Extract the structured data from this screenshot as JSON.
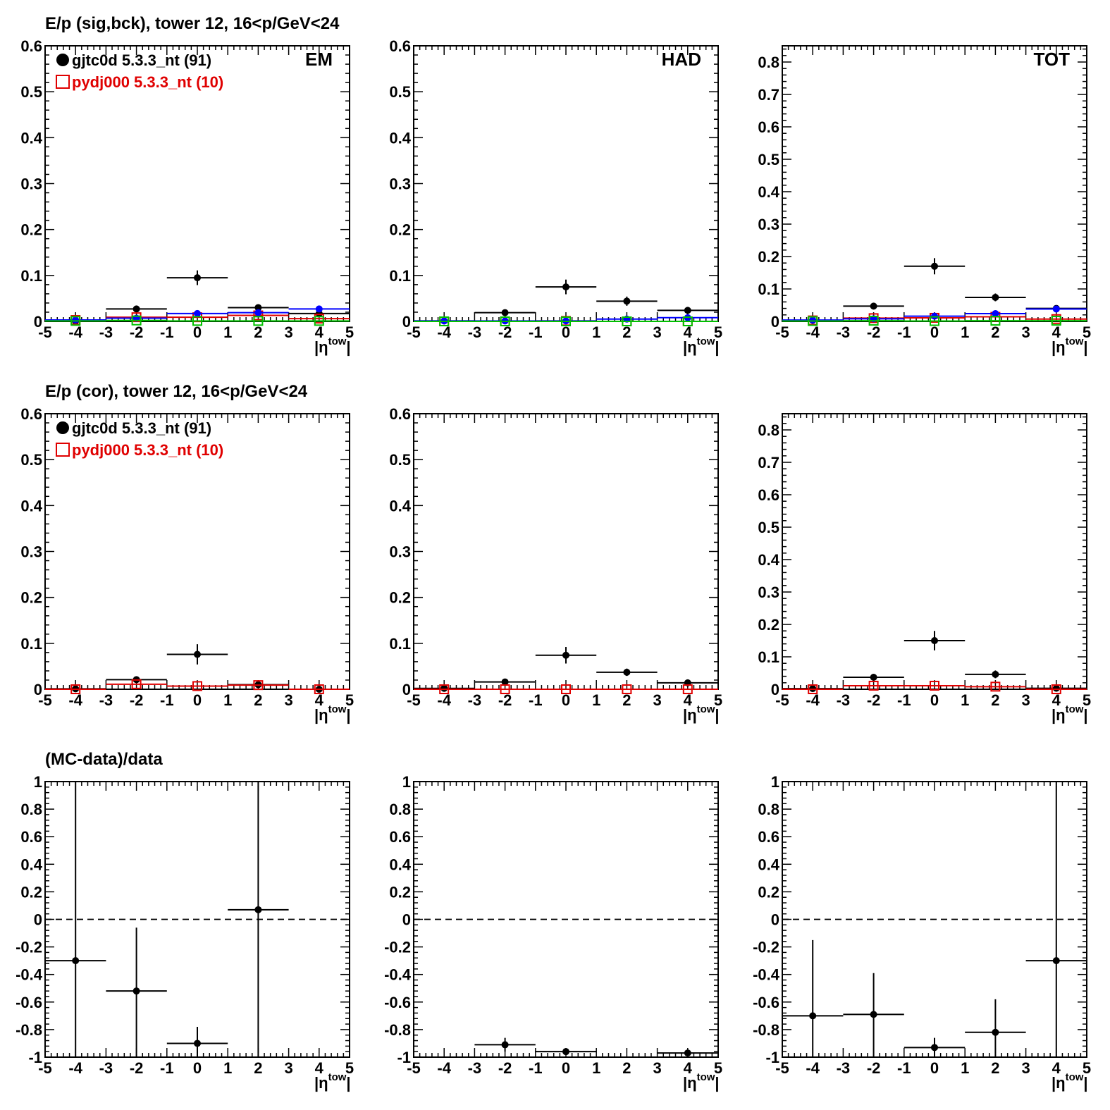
{
  "titles": {
    "row0": "E/p (sig,bck), tower 12, 16<p/GeV<24",
    "row1": "E/p (cor), tower 12, 16<p/GeV<24",
    "row2": "(MC-data)/data"
  },
  "legend": {
    "data_label": "gjtc0d 5.3.3_nt (91)",
    "mc_label": "pydj000 5.3.3_nt (10)"
  },
  "xaxis": {
    "label_main": "|η",
    "label_sup": "tow",
    "label_end": "|"
  },
  "colors": {
    "data": "#000000",
    "mc": "#e00000",
    "blue": "#0000ff",
    "green": "#00c000"
  },
  "chart_data": [
    {
      "id": "r0c0",
      "type": "line",
      "panel_label": "EM",
      "legend": true,
      "xlim": [
        -5,
        5
      ],
      "ylim": [
        0,
        0.6
      ],
      "yticks": [
        0,
        0.1,
        0.2,
        0.3,
        0.4,
        0.5,
        0.6
      ],
      "series": [
        {
          "name": "gjtc0d 5.3.3_nt (91)",
          "role": "data",
          "color": "#000000",
          "marker": "dot",
          "x": [
            -4,
            -2,
            0,
            2,
            4
          ],
          "y": [
            0.001,
            0.027,
            0.095,
            0.03,
            0.017
          ],
          "err": [
            0.0,
            0.0,
            0.016,
            0.0,
            0.0
          ]
        },
        {
          "name": "pydj000 5.3.3_nt (10)",
          "role": "mc",
          "color": "#e00000",
          "marker": "box",
          "x": [
            -4,
            -2,
            0,
            2,
            4
          ],
          "y": [
            0.003,
            0.009,
            0.009,
            0.013,
            0.006
          ]
        },
        {
          "role": "blue",
          "color": "#0000ff",
          "marker": "dot",
          "x": [
            -4,
            -2,
            0,
            2,
            4
          ],
          "y": [
            0.003,
            0.007,
            0.017,
            0.019,
            0.027
          ]
        },
        {
          "role": "green",
          "color": "#00c000",
          "marker": "box",
          "x": [
            -4,
            -2,
            0,
            2,
            4
          ],
          "y": [
            0.001,
            0.002,
            0.001,
            0.001,
            0.001
          ]
        }
      ]
    },
    {
      "id": "r0c1",
      "type": "line",
      "panel_label": "HAD",
      "legend": false,
      "xlim": [
        -5,
        5
      ],
      "ylim": [
        0,
        0.6
      ],
      "yticks": [
        0,
        0.1,
        0.2,
        0.3,
        0.4,
        0.5,
        0.6
      ],
      "series": [
        {
          "role": "data",
          "color": "#000000",
          "marker": "dot",
          "x": [
            -4,
            -2,
            0,
            2,
            4
          ],
          "y": [
            0.001,
            0.019,
            0.075,
            0.044,
            0.024
          ],
          "err": [
            0.0,
            0.0,
            0.016,
            0.01,
            0.0
          ]
        },
        {
          "role": "mc",
          "color": "#e00000",
          "marker": "box",
          "x": [
            -4,
            -2,
            0,
            2,
            4
          ],
          "y": [
            0.0,
            0.0,
            0.001,
            0.0,
            0.0
          ]
        },
        {
          "role": "blue",
          "color": "#0000ff",
          "marker": "dot",
          "x": [
            -4,
            -2,
            0,
            2,
            4
          ],
          "y": [
            0.001,
            0.001,
            0.001,
            0.005,
            0.008
          ]
        },
        {
          "role": "green",
          "color": "#00c000",
          "marker": "box",
          "x": [
            -4,
            -2,
            0,
            2,
            4
          ],
          "y": [
            0.0,
            0.0,
            0.0,
            0.0,
            0.0
          ]
        }
      ]
    },
    {
      "id": "r0c2",
      "type": "line",
      "panel_label": "TOT",
      "legend": false,
      "xlim": [
        -5,
        5
      ],
      "ylim": [
        0,
        0.85
      ],
      "yticks": [
        0,
        0.1,
        0.2,
        0.3,
        0.4,
        0.5,
        0.6,
        0.7,
        0.8
      ],
      "series": [
        {
          "role": "data",
          "color": "#000000",
          "marker": "dot",
          "x": [
            -4,
            -2,
            0,
            2,
            4
          ],
          "y": [
            0.003,
            0.047,
            0.17,
            0.074,
            0.04
          ],
          "err": [
            0.0,
            0.0,
            0.025,
            0.012,
            0.0
          ]
        },
        {
          "role": "mc",
          "color": "#e00000",
          "marker": "box",
          "x": [
            -4,
            -2,
            0,
            2,
            4
          ],
          "y": [
            0.003,
            0.01,
            0.011,
            0.014,
            0.007
          ]
        },
        {
          "role": "blue",
          "color": "#0000ff",
          "marker": "dot",
          "x": [
            -4,
            -2,
            0,
            2,
            4
          ],
          "y": [
            0.004,
            0.008,
            0.016,
            0.024,
            0.038
          ]
        },
        {
          "role": "green",
          "color": "#00c000",
          "marker": "box",
          "x": [
            -4,
            -2,
            0,
            2,
            4
          ],
          "y": [
            0.001,
            0.002,
            0.001,
            0.002,
            0.002
          ]
        }
      ]
    },
    {
      "id": "r1c0",
      "type": "line",
      "panel_label": "",
      "legend": true,
      "xlim": [
        -5,
        5
      ],
      "ylim": [
        0,
        0.6
      ],
      "yticks": [
        0,
        0.1,
        0.2,
        0.3,
        0.4,
        0.5,
        0.6
      ],
      "series": [
        {
          "name": "gjtc0d 5.3.3_nt (91)",
          "role": "data",
          "color": "#000000",
          "marker": "dot",
          "x": [
            -4,
            -2,
            0,
            2,
            4
          ],
          "y": [
            0.001,
            0.021,
            0.076,
            0.01,
            0.0
          ],
          "err": [
            0.0,
            0.0,
            0.022,
            0.0,
            0.0
          ]
        },
        {
          "name": "pydj000 5.3.3_nt (10)",
          "role": "mc",
          "color": "#e00000",
          "marker": "box",
          "x": [
            -4,
            -2,
            0,
            2,
            4
          ],
          "y": [
            0.0,
            0.011,
            0.007,
            0.009,
            0.0
          ]
        }
      ]
    },
    {
      "id": "r1c1",
      "type": "line",
      "panel_label": "",
      "legend": false,
      "xlim": [
        -5,
        5
      ],
      "ylim": [
        0,
        0.6
      ],
      "yticks": [
        0,
        0.1,
        0.2,
        0.3,
        0.4,
        0.5,
        0.6
      ],
      "series": [
        {
          "role": "data",
          "color": "#000000",
          "marker": "dot",
          "x": [
            -4,
            -2,
            0,
            2,
            4
          ],
          "y": [
            0.002,
            0.016,
            0.074,
            0.037,
            0.014
          ],
          "err": [
            0.0,
            0.0,
            0.018,
            0.008,
            0.0
          ]
        },
        {
          "role": "mc",
          "color": "#e00000",
          "marker": "box",
          "x": [
            -4,
            -2,
            0,
            2,
            4
          ],
          "y": [
            0.0,
            0.0,
            0.0,
            0.0,
            0.0
          ]
        }
      ]
    },
    {
      "id": "r1c2",
      "type": "line",
      "panel_label": "",
      "legend": false,
      "xlim": [
        -5,
        5
      ],
      "ylim": [
        0,
        0.85
      ],
      "yticks": [
        0,
        0.1,
        0.2,
        0.3,
        0.4,
        0.5,
        0.6,
        0.7,
        0.8
      ],
      "series": [
        {
          "role": "data",
          "color": "#000000",
          "marker": "dot",
          "x": [
            -4,
            -2,
            0,
            2,
            4
          ],
          "y": [
            0.002,
            0.037,
            0.15,
            0.046,
            0.003
          ],
          "err": [
            0.0,
            0.0,
            0.03,
            0.012,
            0.0
          ]
        },
        {
          "role": "mc",
          "color": "#e00000",
          "marker": "box",
          "x": [
            -4,
            -2,
            0,
            2,
            4
          ],
          "y": [
            0.0,
            0.011,
            0.011,
            0.008,
            0.0
          ]
        }
      ]
    },
    {
      "id": "r2c0",
      "type": "line",
      "panel_label": "",
      "legend": false,
      "xlim": [
        -5,
        5
      ],
      "ylim": [
        -1,
        1
      ],
      "refline": 0,
      "yticks": [
        -1,
        -0.8,
        -0.6,
        -0.4,
        -0.2,
        0,
        0.2,
        0.4,
        0.6,
        0.8,
        1
      ],
      "series": [
        {
          "role": "data",
          "color": "#000000",
          "marker": "dot",
          "x": [
            -4,
            -2,
            0,
            2
          ],
          "y": [
            -0.3,
            -0.52,
            -0.9,
            0.07
          ],
          "errlo": [
            0.7,
            0.48,
            0.1,
            1.07
          ],
          "errhi": [
            1.3,
            0.46,
            0.12,
            0.93
          ]
        }
      ]
    },
    {
      "id": "r2c1",
      "type": "line",
      "panel_label": "",
      "legend": false,
      "xlim": [
        -5,
        5
      ],
      "ylim": [
        -1,
        1
      ],
      "refline": 0,
      "yticks": [
        -1,
        -0.8,
        -0.6,
        -0.4,
        -0.2,
        0,
        0.2,
        0.4,
        0.6,
        0.8,
        1
      ],
      "series": [
        {
          "role": "data",
          "color": "#000000",
          "marker": "dot",
          "x": [
            -2,
            0,
            4
          ],
          "y": [
            -0.91,
            -0.96,
            -0.97
          ],
          "errlo": [
            0.05,
            0.02,
            0.02
          ],
          "errhi": [
            0.05,
            0.02,
            0.02
          ]
        }
      ]
    },
    {
      "id": "r2c2",
      "type": "line",
      "panel_label": "",
      "legend": false,
      "xlim": [
        -5,
        5
      ],
      "ylim": [
        -1,
        1
      ],
      "refline": 0,
      "yticks": [
        -1,
        -0.8,
        -0.6,
        -0.4,
        -0.2,
        0,
        0.2,
        0.4,
        0.6,
        0.8,
        1
      ],
      "series": [
        {
          "role": "data",
          "color": "#000000",
          "marker": "dot",
          "x": [
            -4,
            -2,
            0,
            2,
            4
          ],
          "y": [
            -0.7,
            -0.69,
            -0.93,
            -0.82,
            -0.3
          ],
          "errlo": [
            0.3,
            0.31,
            0.07,
            0.18,
            0.7
          ],
          "errhi": [
            0.55,
            0.3,
            0.07,
            0.24,
            1.3
          ]
        }
      ]
    }
  ]
}
